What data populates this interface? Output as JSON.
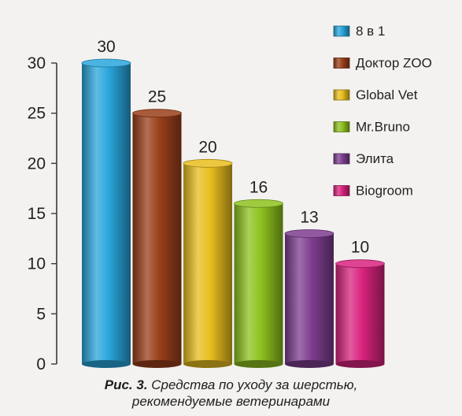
{
  "chart_data": {
    "type": "bar",
    "categories": [
      "8 в 1",
      "Доктор ZOO",
      "Global Vet",
      "Mr.Bruno",
      "Элита",
      "Biogroom"
    ],
    "values": [
      30,
      25,
      20,
      16,
      13,
      10
    ],
    "data_labels": [
      "30",
      "25",
      "20",
      "16",
      "13",
      "10"
    ],
    "ylim": [
      0,
      30
    ],
    "yticks": [
      0,
      5,
      10,
      15,
      20,
      25,
      30
    ],
    "ytick_labels": [
      "0",
      "5",
      "10",
      "15",
      "20",
      "25",
      "30"
    ],
    "grid": false,
    "legend_position": "top-right",
    "colors": [
      "#2aa6dc",
      "#9a3f1a",
      "#e8be1e",
      "#8ec21f",
      "#7d3d8f",
      "#d8237d"
    ]
  },
  "caption": {
    "figure_label": "Рис. 3.",
    "line1": "Средства по уходу за шерстью,",
    "line2": "рекомендуемые ветеринарами"
  }
}
